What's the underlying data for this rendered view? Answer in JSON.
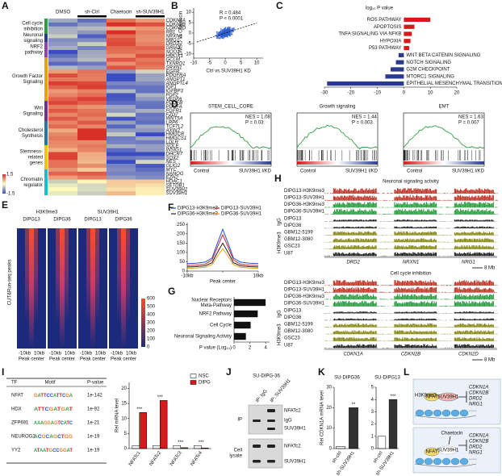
{
  "panels": {
    "A": {
      "label": "A",
      "columns": [
        "DMSO",
        "sh-Ctrl",
        "Chaetocin",
        "sh-SUV39H1"
      ],
      "groups": [
        [
          "Cell cycle",
          "inhibition"
        ],
        [
          "Neuronal",
          "signaling"
        ],
        [
          "NRF2",
          "pathway"
        ],
        [
          "Growth Factor",
          "Signaling"
        ],
        [
          "Wnt",
          "Signaling"
        ],
        [
          "Cholesterol",
          "Synthesis"
        ],
        [
          "Stemness-",
          "related",
          "genes"
        ],
        [
          "Chromatin",
          "regulator"
        ]
      ],
      "genes": [
        "CDKN1A",
        "CDKN2B",
        "CDKN2D",
        "RB1",
        "NRXN1",
        "NRG1",
        "DRD2",
        "GRIA2",
        "NQO1",
        "HMOX1",
        "GCLM",
        "TXNRD1",
        "SRXN1",
        "EGFR",
        "PDGFRA",
        "ANGPT1",
        "ANGPTL4",
        "IGF1",
        "IGFBP3",
        "FGF2",
        "VEGFA",
        "PDGFB",
        "PDGFA",
        "FGFR1",
        "FZD7",
        "WNT5A",
        "LRP6",
        "TCF7L2",
        "AXIN2",
        "HMGCR",
        "HMGCS1",
        "LDLR",
        "SQLE",
        "INSIG1",
        "DHCR7",
        "SOX2",
        "NES",
        "OLIG2",
        "MYC",
        "NANOG",
        "EZH2",
        "HDAC1",
        "SETDB1",
        "SUV39H2",
        "SUV39H1"
      ],
      "scale": [
        1.5,
        -1.5
      ]
    },
    "B": {
      "label": "B",
      "stats": [
        "R = 0.484",
        "P < 0.0001"
      ],
      "xlabel": "Ctrl vs SUV39H1 KD",
      "ylabel": "DMSO vs Chaetocin",
      "xlim": [
        -10,
        12
      ],
      "ylim": [
        -12,
        12
      ],
      "xticks": [
        -10,
        -5,
        0,
        5,
        10
      ],
      "yticks": [
        -10,
        -5,
        0,
        5,
        10
      ]
    },
    "D": {
      "label": "D",
      "plots": [
        {
          "title": "STEM_CELL_CORE",
          "stats": [
            "NES = 1.08",
            "P = 0.03"
          ]
        },
        {
          "title": "Growth signaling",
          "stats": [
            "NES = 1.44",
            "P = 0.003"
          ]
        },
        {
          "title": "EMT",
          "stats": [
            "NES = 1.63",
            "P = 0.007"
          ]
        }
      ],
      "xlabels": [
        "Control",
        "SUV39H1 I/KD"
      ]
    },
    "E": {
      "label": "E",
      "groups": [
        "H3K9me3",
        "SUV39H1"
      ],
      "columns": [
        "DIPG13",
        "DIPG36",
        "DIPG13",
        "DIPG36"
      ],
      "ylabel": "CUT&Run-seq peaks",
      "footer": [
        "-10kb",
        "10kb",
        "Peak center"
      ],
      "scale": [
        600,
        500,
        400,
        300,
        200,
        100,
        0
      ]
    },
    "H": {
      "label": "H",
      "blocks": [
        {
          "title": "Neuronal signaling activity",
          "genes": [
            "DRD2",
            "NRXN1",
            "NRG1"
          ]
        },
        {
          "title": "Cell cycle inhibition",
          "genes": [
            "CDKN1A",
            "CDKN2B",
            "CDKN2D"
          ]
        }
      ],
      "tracks": [
        "DIPG13-H3K9me3",
        "DIPG13-SUV39H1",
        "DIPG36-H3K9me3",
        "DIPG36-SUV39H1",
        "DIPG13",
        "DIPG36",
        "GBM12-5199",
        "GBM12-3080",
        "GSC23",
        "U87"
      ],
      "track_colors": [
        "#c0392b",
        "#c0392b",
        "#2e9e44",
        "#2e9e44",
        "#222222",
        "#222222",
        "#8a8a1a",
        "#8a8a1a",
        "#8a8a1a",
        "#222222"
      ],
      "side_labels": [
        "IgG",
        "H3K9me3"
      ],
      "scale_bar": "8 Mb"
    },
    "I": {
      "label": "I",
      "table": {
        "header": [
          "TF",
          "Motif",
          "P-value"
        ],
        "rows": [
          [
            "NFAT",
            "GATTCCATTCGA",
            "1e-142"
          ],
          [
            "HDX",
            "ATTCGATGAT",
            "1e-92"
          ],
          [
            "ZFP691",
            "AAAGGAGTCATC",
            "1e-21"
          ],
          [
            "NEUROG2",
            "ACGCAGCTGG",
            "1e-19"
          ],
          [
            "YY2",
            "ATAATGCCGGAT",
            "1e-19"
          ]
        ]
      }
    },
    "J": {
      "label": "J",
      "title": "SU-DIPG-36",
      "lanes": [
        "IP: IgG",
        "IP: SUV39H1"
      ],
      "sections": [
        [
          "IP"
        ],
        [
          "Cell",
          "lysate"
        ]
      ],
      "bands": [
        "NFATc2",
        "IgG",
        "SUV39H1",
        "NFATc2",
        "SUV39H1"
      ]
    },
    "L": {
      "label": "L",
      "mark": "H3K9me3",
      "factors": [
        "NFAT",
        "SUV39H1"
      ],
      "drug": "Chaetocin",
      "genes": [
        "CDKN1A",
        "CDKN2B",
        "DRD2",
        "NRG1",
        "......"
      ]
    }
  },
  "chart_data": [
    {
      "type": "bar",
      "label": "C",
      "title": "log₁₀ P value",
      "orientation": "horizontal",
      "categories": [
        "ROS PATHWAY",
        "APOPTOSIS",
        "TNFA SIGNALING VIA NFKB",
        "HYPOXIA",
        "P53 PATHWAY",
        "WNT BETA CATENIN SIGNALING",
        "NOTCH SIGNALING",
        "G2M CHECKPOINT",
        "MTORC1 SIGNALING",
        "EPITHELIAL MESENCHYMAL TRANSITION"
      ],
      "values": [
        10,
        4,
        3,
        2.5,
        2,
        -2,
        -3,
        -5,
        -7,
        -29
      ],
      "colors": [
        "#d7191c",
        "#d7191c",
        "#d7191c",
        "#d7191c",
        "#d7191c",
        "#2b3a8f",
        "#2b3a8f",
        "#2b3a8f",
        "#2b3a8f",
        "#2b3a8f"
      ],
      "xlim": [
        -30,
        20
      ],
      "xticks": [
        -30,
        -20,
        -10,
        0,
        10,
        20
      ]
    },
    {
      "type": "line",
      "label": "F",
      "x": [
        -10,
        -7.5,
        -5,
        -3,
        -1.5,
        0,
        1.5,
        3,
        5,
        7.5,
        10
      ],
      "xlim": [
        -10,
        10
      ],
      "xticks": [
        {
          "value": -10,
          "label": "-10kb"
        },
        {
          "value": 0,
          "label": "Peak center"
        },
        {
          "value": 10,
          "label": "10kb"
        }
      ],
      "ylim": [
        0,
        260
      ],
      "yticks": [
        0,
        50,
        100,
        150,
        200,
        250
      ],
      "series": [
        {
          "name": "DIPG13-H3K9me3",
          "color": "#1f4fd1",
          "values": [
            40,
            42,
            48,
            70,
            150,
            225,
            150,
            70,
            48,
            42,
            40
          ]
        },
        {
          "name": "DIPG13-SUV39H1",
          "color": "#d62728",
          "values": [
            30,
            32,
            37,
            60,
            130,
            195,
            130,
            60,
            37,
            32,
            30
          ]
        },
        {
          "name": "DIPG36-H3K9me3",
          "color": "#222222",
          "values": [
            22,
            24,
            28,
            45,
            100,
            150,
            100,
            45,
            28,
            24,
            22
          ]
        },
        {
          "name": "DIPG36-SUV39H1",
          "color": "#f39c12",
          "values": [
            15,
            17,
            20,
            35,
            80,
            120,
            80,
            35,
            20,
            17,
            15
          ]
        }
      ]
    },
    {
      "type": "bar",
      "label": "G",
      "orientation": "horizontal",
      "categories": [
        [
          "Nuclear Receptors",
          "Meta-Pathway"
        ],
        [
          "NRF2 Pathway"
        ],
        [
          "Cell Cycle"
        ],
        [
          "Neuronal Signaling Activity"
        ]
      ],
      "values": [
        4,
        3,
        2.1,
        1.5
      ],
      "color": "#111111",
      "xlim": [
        0,
        4.5
      ],
      "xticks": [
        0,
        2,
        4
      ],
      "xlabel": "P value (Log₁₀)"
    },
    {
      "type": "bar",
      "categories": [
        "NFATc1",
        "NFATc2",
        "NFATc3",
        "NFATc4"
      ],
      "ylabel": "Rel mRNA level",
      "ylim": [
        0,
        22
      ],
      "yticks": [
        0,
        5,
        10,
        15,
        20
      ],
      "annotations": [
        "***",
        "***",
        "***",
        "***"
      ],
      "series": [
        {
          "name": "NSC",
          "color": "#ffffff",
          "values": [
            1,
            1,
            1,
            1
          ]
        },
        {
          "name": "DIPG",
          "color": "#d7191c",
          "values": [
            12,
            16,
            0.3,
            0.2
          ]
        }
      ]
    },
    {
      "type": "bar",
      "label": "K",
      "title": "SU-DIPG36",
      "ylabel": "Rel CDKN1A mRNA level",
      "categories": [
        "sh-ctrl",
        "sh-SUV39H1"
      ],
      "values": [
        1,
        20
      ],
      "colors": [
        "#ffffff",
        "#333333"
      ],
      "ylim": [
        0,
        30
      ],
      "yticks": [
        0,
        10,
        20,
        30
      ],
      "annotations": [
        null,
        "**"
      ]
    },
    {
      "type": "bar",
      "title": "SU-DIPG13",
      "categories": [
        "sh-ctrl",
        "sh-SUV39H1"
      ],
      "values": [
        1,
        4
      ],
      "colors": [
        "#ffffff",
        "#333333"
      ],
      "ylim": [
        0,
        5
      ],
      "yticks": [
        0,
        1,
        2,
        3,
        4,
        5
      ],
      "annotations": [
        null,
        "***"
      ]
    }
  ]
}
